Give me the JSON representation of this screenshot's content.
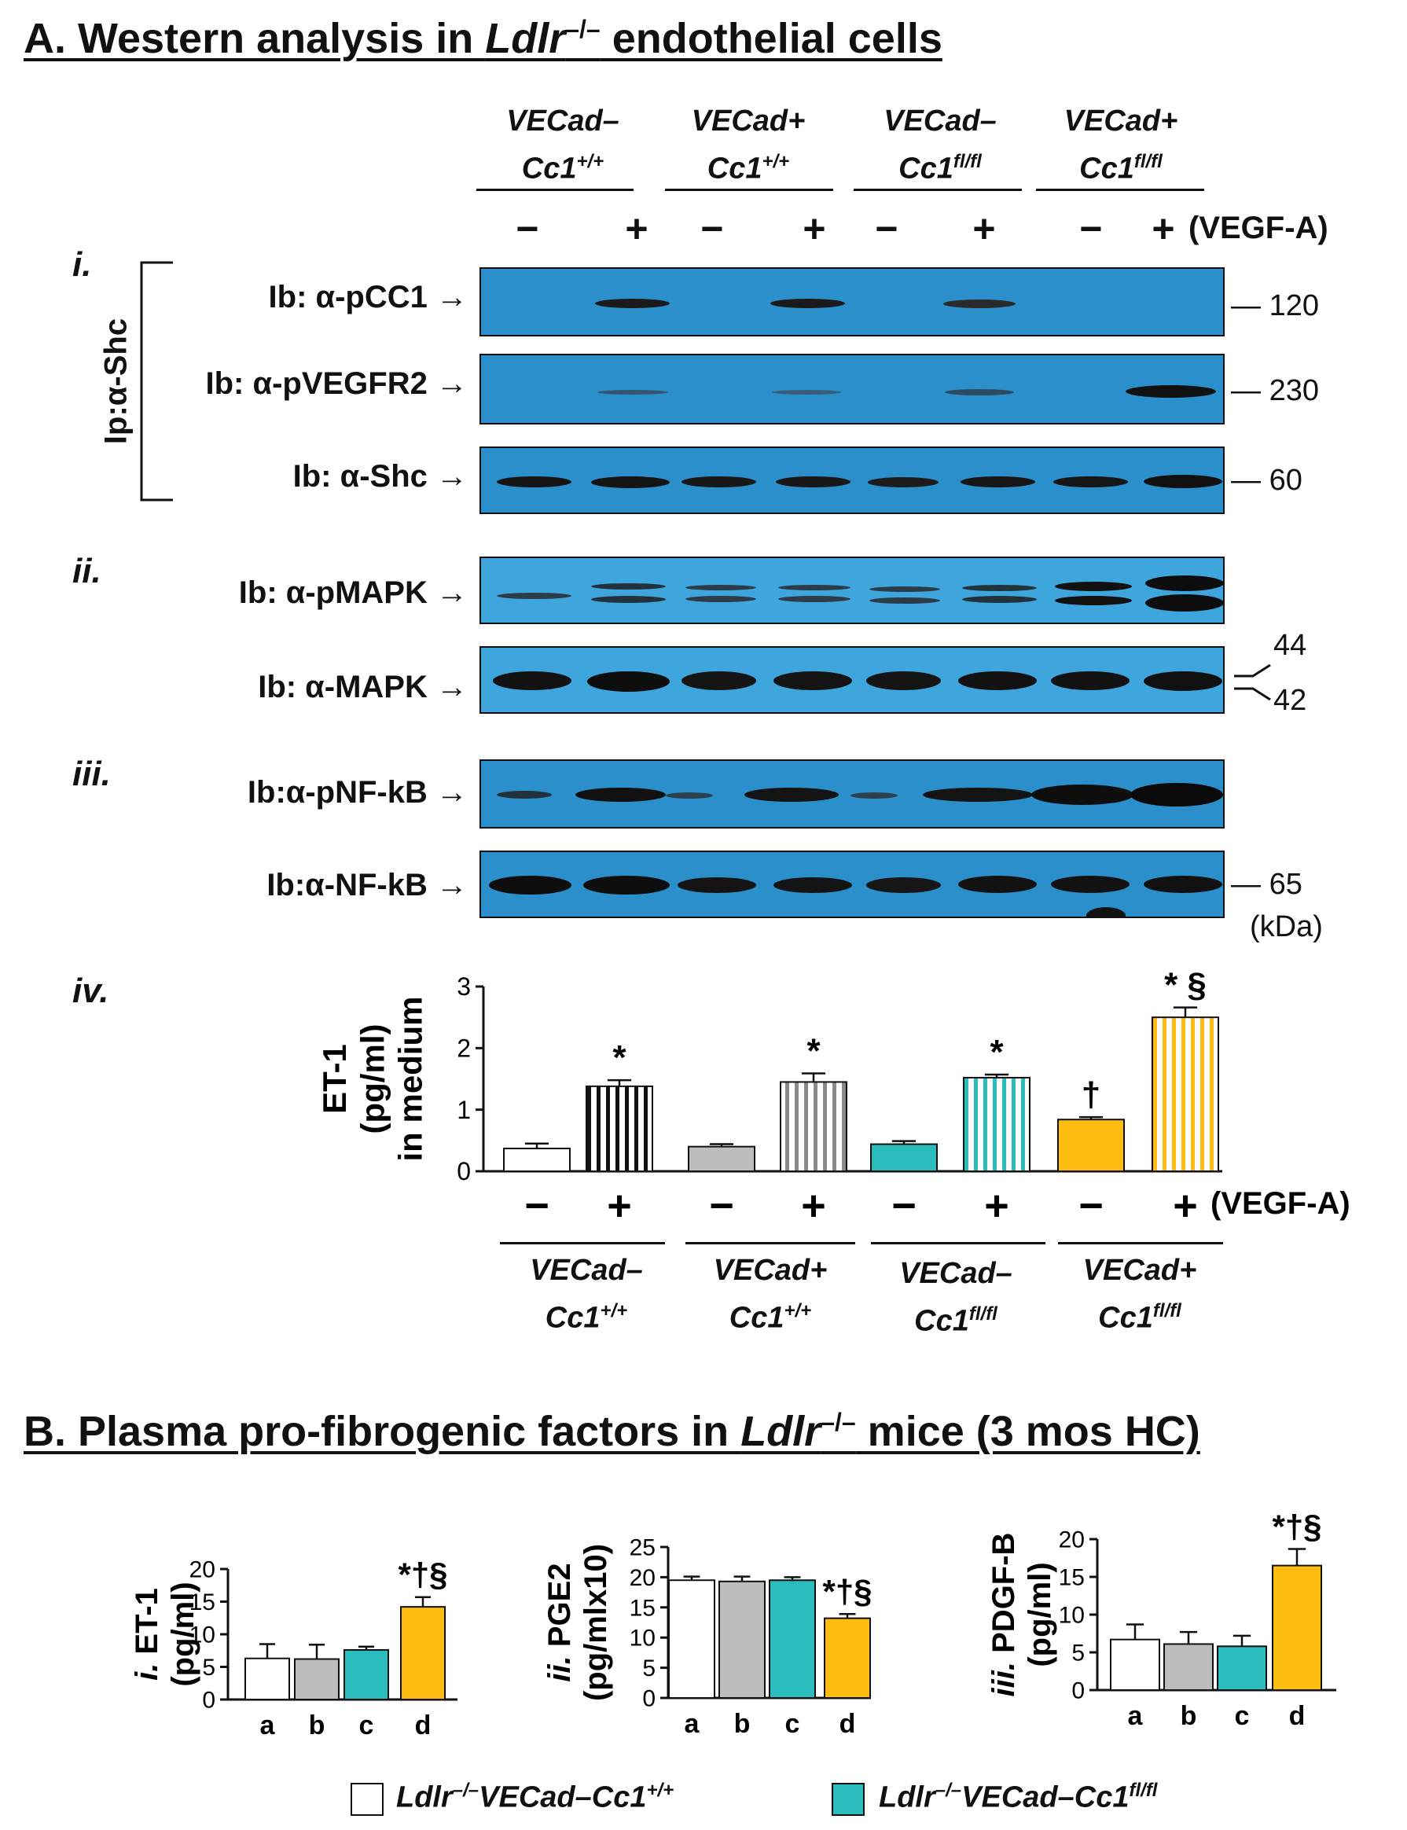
{
  "section_a": {
    "title_pre": "A. Western analysis in ",
    "title_gene": "Ldlr",
    "title_sup": "–/–",
    "title_post": " endothelial cells",
    "groups": [
      {
        "line1": "VECad–",
        "line2": "Cc1",
        "sup": "+/+"
      },
      {
        "line1": "VECad+",
        "line2": "Cc1",
        "sup": "+/+"
      },
      {
        "line1": "VECad–",
        "line2": "Cc1",
        "sup": "fl/fl"
      },
      {
        "line1": "VECad+",
        "line2": "Cc1",
        "sup": "fl/fl"
      }
    ],
    "minus": "−",
    "plus": "+",
    "treatment": "(VEGF-A)",
    "ip_label": "Ip:α-Shc",
    "panel_labels": [
      "i.",
      "ii.",
      "iii.",
      "iv."
    ],
    "blots": [
      {
        "label": "Ib: α-pCC1",
        "mw": "120"
      },
      {
        "label": "Ib: α-pVEGFR2",
        "mw": "230"
      },
      {
        "label": "Ib: α-Shc",
        "mw": "60"
      },
      {
        "label": "Ib: α-pMAPK",
        "mw": ""
      },
      {
        "label": "Ib: α-MAPK",
        "mw": ""
      },
      {
        "label": "Ib:α-pNF-kB",
        "mw": ""
      },
      {
        "label": "Ib:α-NF-kB",
        "mw": "65"
      }
    ],
    "mapk_mw": [
      "44",
      "42"
    ],
    "kda": "(kDa)"
  },
  "colors": {
    "white": "#ffffff",
    "gray": "#bdbdbd",
    "teal": "#2bbdbd",
    "orange": "#ffbd0f",
    "blot_bg": "#2a8fcb"
  },
  "chart_data": [
    {
      "type": "bar",
      "panel": "A.iv",
      "ylabel_lines": [
        "ET-1",
        "(pg/ml)",
        "in medium"
      ],
      "ylim": [
        0,
        3
      ],
      "yticks": [
        "0",
        "1",
        "2",
        "3"
      ],
      "treatment": "(VEGF-A)",
      "categories": [
        "VECad– Cc1+/+ −",
        "VECad– Cc1+/+ +",
        "VECad+ Cc1+/+ −",
        "VECad+ Cc1+/+ +",
        "VECad– Cc1fl/fl −",
        "VECad– Cc1fl/fl +",
        "VECad+ Cc1fl/fl −",
        "VECad+ Cc1fl/fl +"
      ],
      "values": [
        0.37,
        1.38,
        0.4,
        1.45,
        0.44,
        1.52,
        0.84,
        2.5
      ],
      "errors": [
        0.08,
        0.1,
        0.04,
        0.14,
        0.05,
        0.05,
        0.04,
        0.16
      ],
      "fill": [
        "white",
        "white",
        "gray",
        "gray",
        "teal",
        "teal",
        "orange",
        "orange"
      ],
      "striped": [
        false,
        true,
        false,
        true,
        false,
        true,
        false,
        true
      ],
      "annotations": [
        "",
        "*",
        "",
        "*",
        "",
        "*",
        "†",
        "* §"
      ]
    },
    {
      "type": "bar",
      "panel": "B.i",
      "ylabel_roman": "i.",
      "ylabel_lines": [
        "ET-1",
        "(pg/ml)"
      ],
      "ylim": [
        0,
        20
      ],
      "yticks": [
        "0",
        "5",
        "10",
        "15",
        "20"
      ],
      "categories": [
        "a",
        "b",
        "c",
        "d"
      ],
      "values": [
        6.3,
        6.2,
        7.6,
        14.2
      ],
      "errors": [
        2.2,
        2.2,
        0.5,
        1.5
      ],
      "annotations": [
        "",
        "",
        "",
        "*†§"
      ]
    },
    {
      "type": "bar",
      "panel": "B.ii",
      "ylabel_roman": "ii.",
      "ylabel_lines": [
        "PGE2",
        "(pg/mlx10)"
      ],
      "ylim": [
        0,
        25
      ],
      "yticks": [
        "0",
        "5",
        "10",
        "15",
        "20",
        "25"
      ],
      "categories": [
        "a",
        "b",
        "c",
        "d"
      ],
      "values": [
        19.5,
        19.3,
        19.5,
        13.2
      ],
      "errors": [
        0.6,
        0.8,
        0.5,
        0.7
      ],
      "annotations": [
        "",
        "",
        "",
        "*†§"
      ]
    },
    {
      "type": "bar",
      "panel": "B.iii",
      "ylabel_roman": "iii.",
      "ylabel_lines": [
        "PDGF-B",
        "(pg/ml)"
      ],
      "ylim": [
        0,
        20
      ],
      "yticks": [
        "0",
        "5",
        "10",
        "15",
        "20"
      ],
      "categories": [
        "a",
        "b",
        "c",
        "d"
      ],
      "values": [
        6.7,
        6.1,
        5.8,
        16.5
      ],
      "errors": [
        2.0,
        1.6,
        1.4,
        2.2
      ],
      "annotations": [
        "",
        "",
        "",
        "*†§"
      ]
    }
  ],
  "section_b": {
    "title_pre": "B. Plasma pro-fibrogenic factors in ",
    "title_gene": "Ldlr",
    "title_sup": "–/–",
    "title_post": " mice (3 mos HC)",
    "legend": [
      {
        "gene": "Ldlr",
        "sup1": "–/–",
        "mid": "VECad–Cc1",
        "sup2": "+/+",
        "color": "white"
      },
      {
        "gene": "Ldlr",
        "sup1": "–/–",
        "mid": "VECad–Cc1",
        "sup2": "fl/fl",
        "color": "teal"
      }
    ]
  }
}
